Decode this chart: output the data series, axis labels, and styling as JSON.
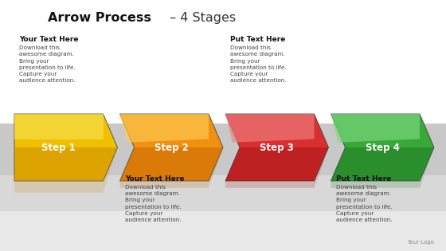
{
  "title_bold": "Arrow Process",
  "title_suffix": " – 4 Stages",
  "steps": [
    {
      "label": "Step 1",
      "color_light": "#f5e050",
      "color_mid": "#f0c000",
      "color_dark": "#c88000",
      "shadow": "#7a5000"
    },
    {
      "label": "Step 2",
      "color_light": "#ffcc55",
      "color_mid": "#f09010",
      "color_dark": "#c06000",
      "shadow": "#7a3800"
    },
    {
      "label": "Step 3",
      "color_light": "#f08080",
      "color_mid": "#d83030",
      "color_dark": "#a01010",
      "shadow": "#600000"
    },
    {
      "label": "Step 4",
      "color_light": "#80d880",
      "color_mid": "#38a838",
      "color_dark": "#1a7020",
      "shadow": "#0a3a10"
    }
  ],
  "top_annotations": [
    {
      "col": 0,
      "heading": "Your Text Here",
      "body": "Download this\nawesome diagram.\nBring your\npresentation to life.\nCapture your\naudience attention."
    },
    {
      "col": 2,
      "heading": "Put Text Here",
      "body": "Download this\nawesome diagram.\nBring your\npresentation to life.\nCapture your\naudience attention."
    }
  ],
  "bottom_annotations": [
    {
      "col": 1,
      "heading": "Your Text Here",
      "body": "Download this\nawesome diagram.\nBring your\npresentation to life.\nCapture your\naudience attention."
    },
    {
      "col": 3,
      "heading": "Put Text Here",
      "body": "Download this\nawesome diagram.\nBring your\npresentation to life.\nCapture your\naudience attention."
    }
  ],
  "logo_text": "Your Logo",
  "bg_white": "#ffffff",
  "bg_gray_top": "#d4d4d4",
  "bg_gray_bottom": "#e0e0e0",
  "title_fontsize": 11.5,
  "heading_fontsize": 6.5,
  "body_fontsize": 5.2,
  "step_fontsize": 8.5
}
